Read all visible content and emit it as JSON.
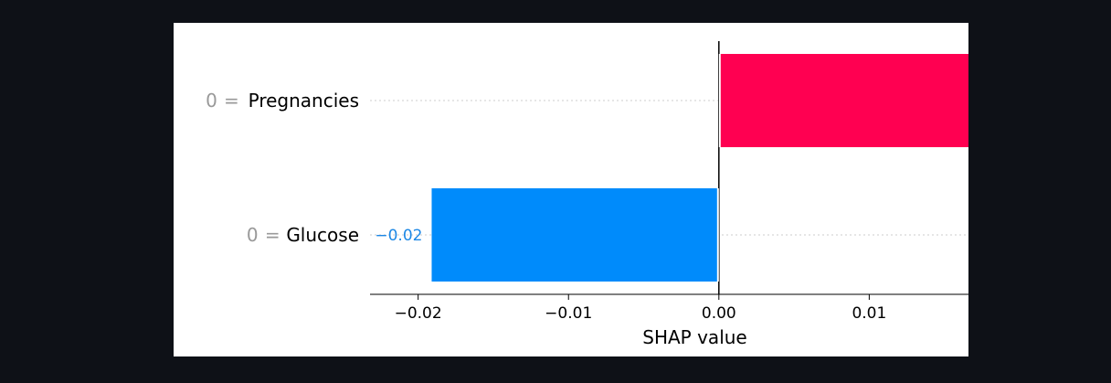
{
  "chart_data": {
    "type": "bar",
    "orientation": "horizontal",
    "categories": [
      {
        "feature": "Pregnancies",
        "value": "0",
        "eq": "="
      },
      {
        "feature": "Glucose",
        "value": "0",
        "eq": "="
      }
    ],
    "values": [
      0.0167,
      -0.0191
    ],
    "data_labels": [
      "",
      "−0.02"
    ],
    "xlabel": "SHAP value",
    "xlim": [
      -0.0232,
      0.0166
    ],
    "xticks": [
      {
        "value": -0.02,
        "label": "−0.02"
      },
      {
        "value": -0.01,
        "label": "−0.01"
      },
      {
        "value": 0.0,
        "label": "0.00"
      },
      {
        "value": 0.01,
        "label": "0.01"
      }
    ],
    "colors": {
      "positive": "#ff0051",
      "negative": "#008bfb",
      "positive_text": "#ff0051",
      "negative_text": "#1e88e5",
      "zero_line": "#000000",
      "grid": "#cccccc"
    }
  }
}
